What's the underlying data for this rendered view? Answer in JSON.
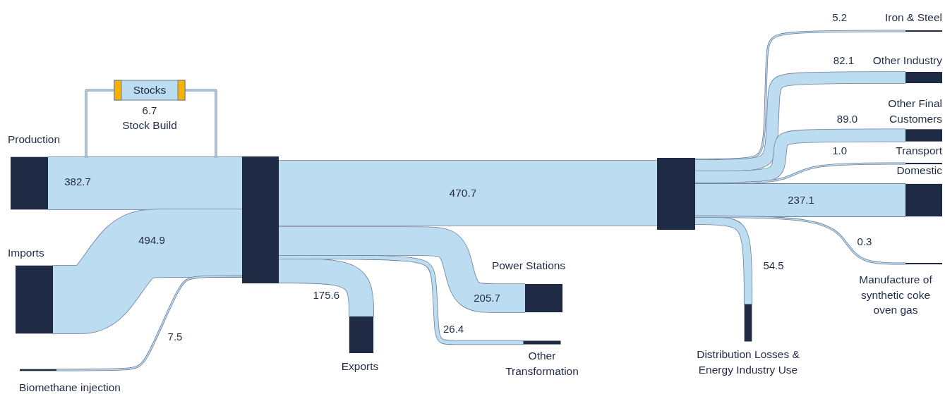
{
  "chart_data": {
    "type": "other",
    "categories": [
      "Production",
      "Imports",
      "Biomethane injection",
      "Stock Build",
      "Exports",
      "Other Transformation",
      "Power Stations",
      "Distribution Losses & Energy Industry Use",
      "Iron & Steel",
      "Other Industry",
      "Other Final Customers",
      "Transport",
      "Domestic",
      "Manufacture of synthetic coke oven gas"
    ],
    "values": [
      382.7,
      494.9,
      7.5,
      6.7,
      175.6,
      26.4,
      205.7,
      54.5,
      5.2,
      82.1,
      89.0,
      1.0,
      237.1,
      0.3
    ],
    "value_labels": [
      "382.7",
      "494.9",
      "7.5",
      "6.7",
      "175.6",
      "26.4",
      "205.7",
      "54.5",
      "5.2",
      "82.1",
      "89.0",
      "1.0",
      "237.1",
      "0.3"
    ],
    "annotations": [
      "Stocks",
      "470.7"
    ]
  }
}
